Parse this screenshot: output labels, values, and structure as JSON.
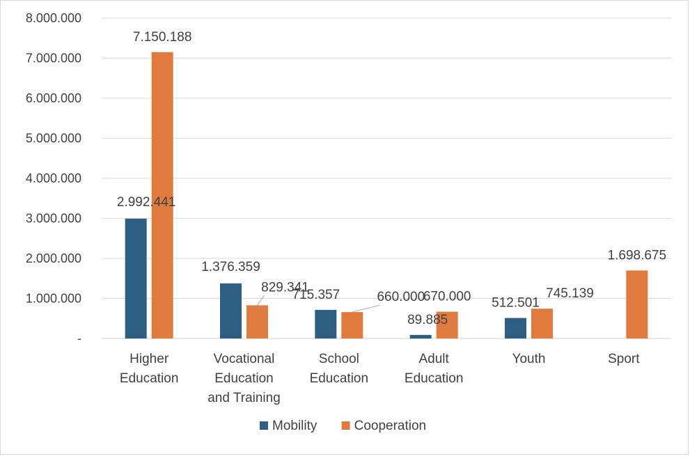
{
  "chart_data": {
    "type": "bar",
    "categories": [
      [
        "Higher",
        "Education"
      ],
      [
        "Vocational",
        "Education",
        "and Training"
      ],
      [
        "School",
        "Education"
      ],
      [
        "Adult",
        "Education"
      ],
      [
        "Youth"
      ],
      [
        "Sport"
      ]
    ],
    "series": [
      {
        "name": "Mobility",
        "color": "#2e5f82",
        "values": [
          2992441,
          1376359,
          715357,
          89885,
          512501,
          null
        ],
        "labels": [
          "2.992.441",
          "1.376.359",
          "715.357",
          "89.885",
          "512.501",
          ""
        ]
      },
      {
        "name": "Cooperation",
        "color": "#e07b3f",
        "values": [
          7150188,
          829341,
          660000,
          670000,
          745139,
          1698675
        ],
        "labels": [
          "7.150.188",
          "829.341",
          "660.000",
          "670.000",
          "745.139",
          "1.698.675"
        ]
      }
    ],
    "ylim": [
      0,
      8000000
    ],
    "yticks": [
      0,
      1000000,
      2000000,
      3000000,
      4000000,
      5000000,
      6000000,
      7000000,
      8000000
    ],
    "ytick_labels": [
      "-",
      "1.000.000",
      "2.000.000",
      "3.000.000",
      "4.000.000",
      "5.000.000",
      "6.000.000",
      "7.000.000",
      "8.000.000"
    ],
    "grid": true,
    "legend_position": "bottom",
    "title": "",
    "xlabel": "",
    "ylabel": ""
  }
}
